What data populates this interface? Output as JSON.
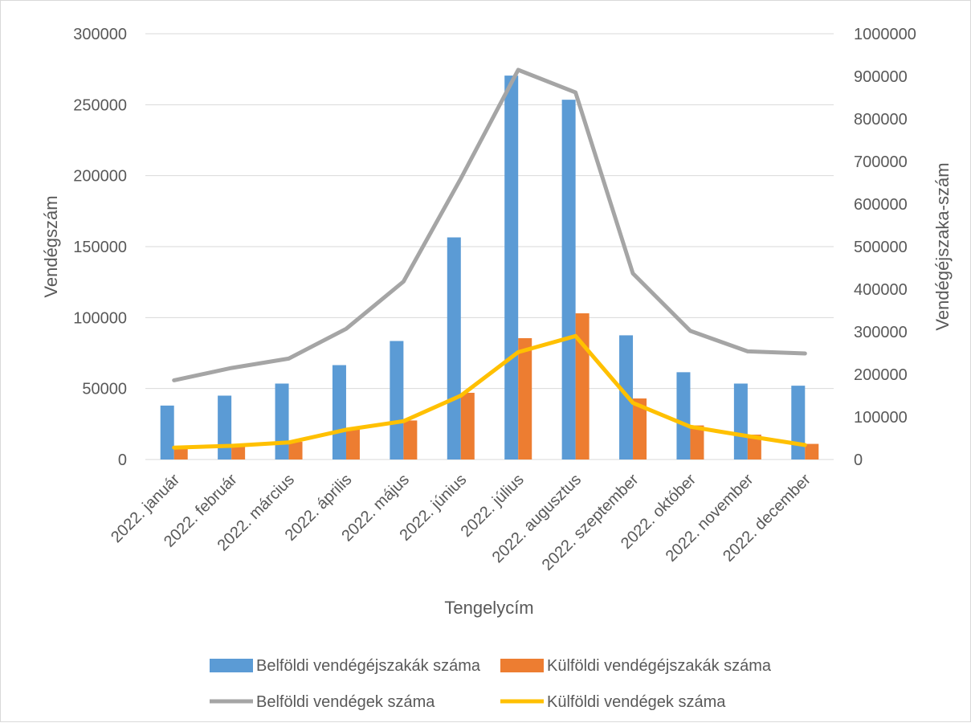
{
  "chart_data": {
    "type": "bar",
    "categories": [
      "2022. január",
      "2022. február",
      "2022. március",
      "2022. április",
      "2022. május",
      "2022. június",
      "2022. július",
      "2022. augusztus",
      "2022. szeptember",
      "2022. október",
      "2022. november",
      "2022. december"
    ],
    "series": [
      {
        "name": "Belföldi vendégéjszakák száma",
        "type": "bar",
        "axis": "left",
        "color": "#5B9BD5",
        "values": [
          38000,
          45000,
          53500,
          66500,
          83500,
          156500,
          270500,
          253500,
          87500,
          61500,
          53500,
          52000
        ]
      },
      {
        "name": "Külföldi vendégéjszakák száma",
        "type": "bar",
        "axis": "left",
        "color": "#ED7D31",
        "values": [
          9000,
          10000,
          12500,
          21000,
          27500,
          47000,
          85500,
          103000,
          43000,
          24000,
          17500,
          11000
        ]
      },
      {
        "name": "Belföldi vendégek száma",
        "type": "line",
        "axis": "right",
        "color": "#A5A5A5",
        "values": [
          186000,
          215000,
          237000,
          307000,
          418000,
          660000,
          915000,
          862000,
          437000,
          302000,
          254000,
          249000
        ]
      },
      {
        "name": "Külföldi vendégek száma",
        "type": "line",
        "axis": "right",
        "color": "#FFC000",
        "values": [
          28000,
          32000,
          40000,
          70000,
          90000,
          150000,
          252000,
          290000,
          133000,
          77000,
          55000,
          34000
        ]
      }
    ],
    "ylabel": "Vendégszám",
    "y2label": "Vendégéjszaka-szám",
    "xlabel": "Tengelycím",
    "ylim": [
      0,
      300000
    ],
    "y2lim": [
      0,
      1000000
    ],
    "yticks": [
      "0",
      "50000",
      "100000",
      "150000",
      "200000",
      "250000",
      "300000"
    ],
    "y2ticks": [
      "0",
      "100000",
      "200000",
      "300000",
      "400000",
      "500000",
      "600000",
      "700000",
      "800000",
      "900000",
      "1000000"
    ],
    "grid": true,
    "legend_position": "bottom"
  }
}
